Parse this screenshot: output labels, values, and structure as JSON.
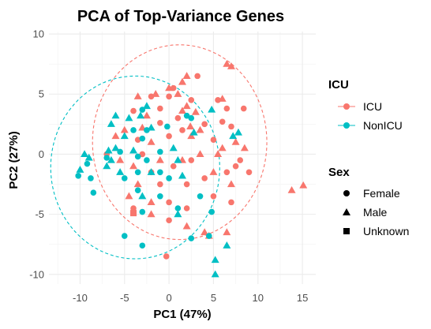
{
  "chart_data": {
    "type": "scatter",
    "title": "PCA of Top-Variance Genes",
    "xlabel": "PC1 (47%)",
    "ylabel": "PC2 (27%)",
    "xlim": [
      -13.5,
      16.5
    ],
    "ylim": [
      -10.8,
      10.2
    ],
    "x_ticks": [
      -10,
      -5,
      0,
      5,
      10,
      15
    ],
    "y_ticks": [
      -10,
      -5,
      0,
      5,
      10
    ],
    "x_tick_labels": [
      "-10",
      "-5",
      "0",
      "5",
      "10",
      "15"
    ],
    "y_tick_labels": [
      "-10",
      "-5",
      "0",
      "5",
      "10"
    ],
    "grid": true,
    "colors": {
      "ICU": "#F8766D",
      "NonICU": "#00BFC4"
    },
    "legend": {
      "position": "right",
      "color_title": "ICU",
      "color_entries": [
        "ICU",
        "NonICU"
      ],
      "shape_title": "Sex",
      "shape_entries": [
        "Female",
        "Male",
        "Unknown"
      ]
    },
    "ellipses": [
      {
        "group": "ICU",
        "center": [
          1.2,
          1.0
        ],
        "rx": 9.8,
        "ry": 8.1
      },
      {
        "group": "NonICU",
        "center": [
          -3.8,
          -1.1
        ],
        "rx": 9.5,
        "ry": 7.6
      }
    ],
    "series": [
      {
        "name": "ICU",
        "points": [
          {
            "x": 7,
            "y": 7.3,
            "shape": "Male"
          },
          {
            "x": 6.5,
            "y": 7.5,
            "shape": "Male"
          },
          {
            "x": 2,
            "y": 6.5,
            "shape": "Male"
          },
          {
            "x": 3.2,
            "y": 6.5,
            "shape": "Female"
          },
          {
            "x": 1.5,
            "y": 6,
            "shape": "Male"
          },
          {
            "x": 0,
            "y": 5.5,
            "shape": "Male"
          },
          {
            "x": 0.5,
            "y": 5.5,
            "shape": "Female"
          },
          {
            "x": 1,
            "y": 5,
            "shape": "Male"
          },
          {
            "x": 0,
            "y": 4.8,
            "shape": "Female"
          },
          {
            "x": -2,
            "y": 4.8,
            "shape": "Female"
          },
          {
            "x": -1.5,
            "y": 5,
            "shape": "Male"
          },
          {
            "x": -3.5,
            "y": 4.8,
            "shape": "Male"
          },
          {
            "x": 2.5,
            "y": 4.5,
            "shape": "Female"
          },
          {
            "x": 6,
            "y": 4.6,
            "shape": "Male"
          },
          {
            "x": 6.5,
            "y": 3.8,
            "shape": "Female"
          },
          {
            "x": 8.4,
            "y": 3.8,
            "shape": "Female"
          },
          {
            "x": 5.5,
            "y": 4.5,
            "shape": "Female"
          },
          {
            "x": 2,
            "y": 4,
            "shape": "Male"
          },
          {
            "x": 1.5,
            "y": 3.6,
            "shape": "Male"
          },
          {
            "x": 3,
            "y": 3.5,
            "shape": "Male"
          },
          {
            "x": -1,
            "y": 3.8,
            "shape": "Female"
          },
          {
            "x": -4,
            "y": 3.6,
            "shape": "Female"
          },
          {
            "x": -2.5,
            "y": 3.2,
            "shape": "Male"
          },
          {
            "x": -1,
            "y": 2.6,
            "shape": "Female"
          },
          {
            "x": 1,
            "y": 3,
            "shape": "Female"
          },
          {
            "x": 2.4,
            "y": 2.3,
            "shape": "Male"
          },
          {
            "x": 6,
            "y": 2.7,
            "shape": "Female"
          },
          {
            "x": 7,
            "y": 2.3,
            "shape": "Female"
          },
          {
            "x": 4,
            "y": 2.5,
            "shape": "Female"
          },
          {
            "x": 3.5,
            "y": 2,
            "shape": "Male"
          },
          {
            "x": 1.5,
            "y": 2,
            "shape": "Female"
          },
          {
            "x": -3,
            "y": 2.2,
            "shape": "Male"
          },
          {
            "x": -5,
            "y": 2,
            "shape": "Male"
          },
          {
            "x": -6,
            "y": 1.5,
            "shape": "Male"
          },
          {
            "x": -3.5,
            "y": 1.2,
            "shape": "Female"
          },
          {
            "x": -2,
            "y": 1,
            "shape": "Male"
          },
          {
            "x": 0,
            "y": 1.5,
            "shape": "Female"
          },
          {
            "x": 2.5,
            "y": 1.5,
            "shape": "Male"
          },
          {
            "x": 5,
            "y": 1.2,
            "shape": "Female"
          },
          {
            "x": 7.5,
            "y": 1,
            "shape": "Male"
          },
          {
            "x": 6,
            "y": 0.5,
            "shape": "Male"
          },
          {
            "x": 8.5,
            "y": 0.5,
            "shape": "Male"
          },
          {
            "x": 5.5,
            "y": 0,
            "shape": "Male"
          },
          {
            "x": 8,
            "y": -0.5,
            "shape": "Female"
          },
          {
            "x": 7.5,
            "y": -1,
            "shape": "Female"
          },
          {
            "x": 3.5,
            "y": 0,
            "shape": "Male"
          },
          {
            "x": 1.5,
            "y": -0.5,
            "shape": "Male"
          },
          {
            "x": -1,
            "y": -0.5,
            "shape": "Male"
          },
          {
            "x": -3,
            "y": 0,
            "shape": "Female"
          },
          {
            "x": -5.5,
            "y": -0.5,
            "shape": "Male"
          },
          {
            "x": -7,
            "y": 0,
            "shape": "Female"
          },
          {
            "x": -4,
            "y": -1,
            "shape": "Male"
          },
          {
            "x": -2,
            "y": -1.5,
            "shape": "Female"
          },
          {
            "x": 0.5,
            "y": -1,
            "shape": "Female"
          },
          {
            "x": 2.5,
            "y": -0.5,
            "shape": "Female"
          },
          {
            "x": 5,
            "y": -1.5,
            "shape": "Male"
          },
          {
            "x": 6.5,
            "y": -1.5,
            "shape": "Female"
          },
          {
            "x": 9,
            "y": -1.5,
            "shape": "Female"
          },
          {
            "x": 4,
            "y": -2,
            "shape": "Female"
          },
          {
            "x": 2,
            "y": -2.5,
            "shape": "Female"
          },
          {
            "x": -1,
            "y": -2.5,
            "shape": "Female"
          },
          {
            "x": -3.5,
            "y": -2.5,
            "shape": "Male"
          },
          {
            "x": -4.5,
            "y": -3.5,
            "shape": "Male"
          },
          {
            "x": -2,
            "y": -4,
            "shape": "Male"
          },
          {
            "x": 0,
            "y": -4,
            "shape": "Female"
          },
          {
            "x": 2,
            "y": -4.5,
            "shape": "Female"
          },
          {
            "x": 5,
            "y": -3.5,
            "shape": "Female"
          },
          {
            "x": 7,
            "y": -2.5,
            "shape": "Male"
          },
          {
            "x": 7,
            "y": -4,
            "shape": "Female"
          },
          {
            "x": -2,
            "y": -5,
            "shape": "Male"
          },
          {
            "x": -4,
            "y": -4.5,
            "shape": "Female"
          },
          {
            "x": 0,
            "y": -5.5,
            "shape": "Female"
          },
          {
            "x": 2,
            "y": -6,
            "shape": "Male"
          },
          {
            "x": 4,
            "y": -6.5,
            "shape": "Male"
          },
          {
            "x": 6.5,
            "y": -6.5,
            "shape": "Male"
          },
          {
            "x": 4.5,
            "y": -6.8,
            "shape": "Male"
          },
          {
            "x": 13.8,
            "y": -3,
            "shape": "Male"
          },
          {
            "x": 15.1,
            "y": -2.6,
            "shape": "Male"
          },
          {
            "x": -4,
            "y": -4.9,
            "shape": "Unknown"
          },
          {
            "x": -0.3,
            "y": -8.5,
            "shape": "Female"
          }
        ]
      },
      {
        "name": "NonICU",
        "points": [
          {
            "x": 4.8,
            "y": 3.7,
            "shape": "Male"
          },
          {
            "x": -2.5,
            "y": 4,
            "shape": "Male"
          },
          {
            "x": -3,
            "y": 3.7,
            "shape": "Female"
          },
          {
            "x": -3.2,
            "y": 3.2,
            "shape": "Male"
          },
          {
            "x": -6,
            "y": 3.2,
            "shape": "Male"
          },
          {
            "x": -4.5,
            "y": 3,
            "shape": "Male"
          },
          {
            "x": -2,
            "y": 2.2,
            "shape": "Male"
          },
          {
            "x": -4,
            "y": 2,
            "shape": "Female"
          },
          {
            "x": -2.5,
            "y": 2,
            "shape": "Female"
          },
          {
            "x": -0.2,
            "y": 2.3,
            "shape": "Female"
          },
          {
            "x": -6.5,
            "y": 2.5,
            "shape": "Male"
          },
          {
            "x": -5,
            "y": 1.5,
            "shape": "Male"
          },
          {
            "x": -3,
            "y": 1.3,
            "shape": "Female"
          },
          {
            "x": 2,
            "y": 3.2,
            "shape": "Female"
          },
          {
            "x": 2.5,
            "y": 3,
            "shape": "Female"
          },
          {
            "x": 2.8,
            "y": 1.8,
            "shape": "Male"
          },
          {
            "x": 7.8,
            "y": 1.8,
            "shape": "Male"
          },
          {
            "x": 7.2,
            "y": 1.5,
            "shape": "Male"
          },
          {
            "x": -6.8,
            "y": 0.3,
            "shape": "Male"
          },
          {
            "x": -6,
            "y": 0.5,
            "shape": "Male"
          },
          {
            "x": -5.5,
            "y": 0.2,
            "shape": "Female"
          },
          {
            "x": -7,
            "y": -0.3,
            "shape": "Female"
          },
          {
            "x": -6.5,
            "y": -0.5,
            "shape": "Male"
          },
          {
            "x": -4,
            "y": 0.3,
            "shape": "Male"
          },
          {
            "x": -3.5,
            "y": -0.2,
            "shape": "Female"
          },
          {
            "x": -2.5,
            "y": -0.5,
            "shape": "Female"
          },
          {
            "x": -1,
            "y": 0.2,
            "shape": "Female"
          },
          {
            "x": 0.5,
            "y": 0.5,
            "shape": "Male"
          },
          {
            "x": 1,
            "y": -0.5,
            "shape": "Male"
          },
          {
            "x": -9.5,
            "y": 0,
            "shape": "Male"
          },
          {
            "x": -9,
            "y": -0.3,
            "shape": "Male"
          },
          {
            "x": -9.2,
            "y": -0.8,
            "shape": "Female"
          },
          {
            "x": -8.8,
            "y": -2,
            "shape": "Female"
          },
          {
            "x": -10,
            "y": -1.3,
            "shape": "Male"
          },
          {
            "x": -10.2,
            "y": -1.8,
            "shape": "Female"
          },
          {
            "x": -7,
            "y": -1,
            "shape": "Male"
          },
          {
            "x": -5.5,
            "y": -1.5,
            "shape": "Male"
          },
          {
            "x": -3.5,
            "y": -1.5,
            "shape": "Female"
          },
          {
            "x": -2,
            "y": -1.5,
            "shape": "Male"
          },
          {
            "x": -1,
            "y": -1.5,
            "shape": "Female"
          },
          {
            "x": 0,
            "y": -2,
            "shape": "Female"
          },
          {
            "x": 1.5,
            "y": -1.8,
            "shape": "Male"
          },
          {
            "x": -8.5,
            "y": -3.2,
            "shape": "Female"
          },
          {
            "x": -5,
            "y": -2,
            "shape": "Female"
          },
          {
            "x": -3.5,
            "y": -3,
            "shape": "Female"
          },
          {
            "x": -1,
            "y": -3.5,
            "shape": "Female"
          },
          {
            "x": -3,
            "y": -3.5,
            "shape": "Male"
          },
          {
            "x": -3,
            "y": -4.8,
            "shape": "Female"
          },
          {
            "x": 1,
            "y": -4.5,
            "shape": "Female"
          },
          {
            "x": 3.5,
            "y": -3.5,
            "shape": "Female"
          },
          {
            "x": 1,
            "y": -5,
            "shape": "Male"
          },
          {
            "x": 4.8,
            "y": -4.8,
            "shape": "Female"
          },
          {
            "x": -5,
            "y": -6.8,
            "shape": "Female"
          },
          {
            "x": -3,
            "y": -7.6,
            "shape": "Female"
          },
          {
            "x": 2.5,
            "y": -7,
            "shape": "Female"
          },
          {
            "x": 4.5,
            "y": -6.8,
            "shape": "Female"
          },
          {
            "x": 6.5,
            "y": -7.6,
            "shape": "Male"
          },
          {
            "x": 5.2,
            "y": -8.8,
            "shape": "Male"
          },
          {
            "x": 5.2,
            "y": -10,
            "shape": "Male"
          }
        ]
      }
    ]
  }
}
